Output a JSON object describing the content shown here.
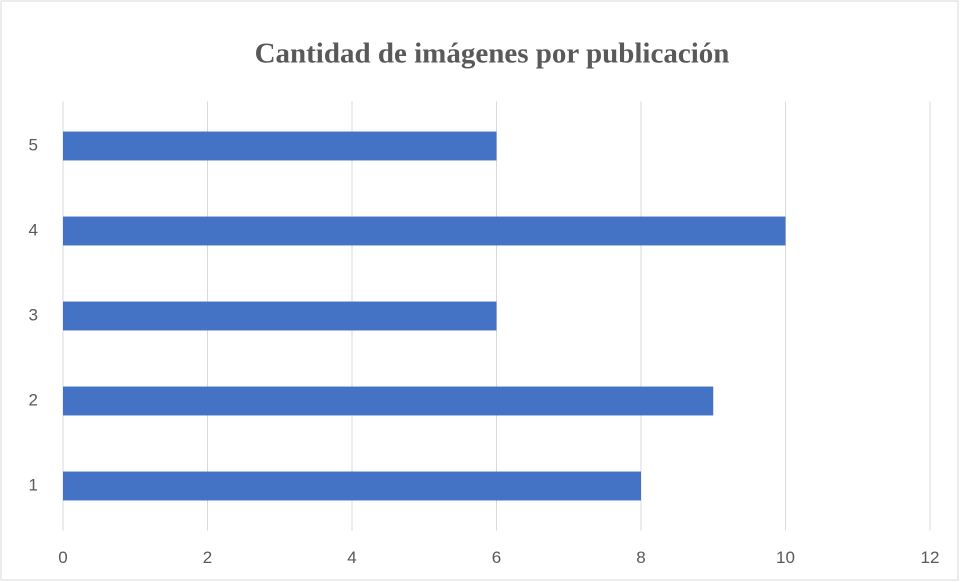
{
  "chart_data": {
    "type": "bar",
    "orientation": "horizontal",
    "title": "Cantidad de imágenes por publicación",
    "categories": [
      "1",
      "2",
      "3",
      "4",
      "5"
    ],
    "values": [
      8,
      9,
      6,
      10,
      6
    ],
    "color": "#4472c4",
    "xlim": [
      0,
      12
    ],
    "xticks": [
      0,
      2,
      4,
      6,
      8,
      10,
      12
    ],
    "grid": true
  }
}
